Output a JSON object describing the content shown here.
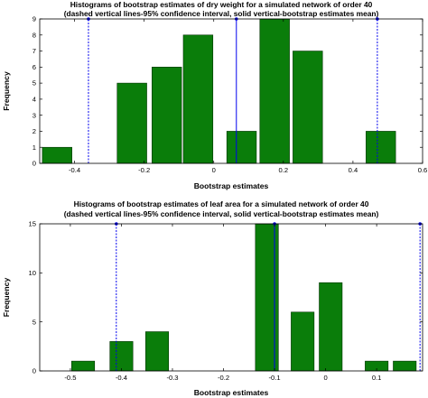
{
  "colors": {
    "bar_fill": "#0a7d0a",
    "bar_stroke": "#003300",
    "mean_line": "#0000ee",
    "ci_line": "#0000ee",
    "axis": "#000000"
  },
  "chart_data": [
    {
      "type": "bar",
      "title_line1": "Histograms of bootstrap estimates of dry weight for a simulated network of order 40",
      "title_line2": "(dashed vertical lines-95% confidence interval, solid vertical-bootstrap estimates mean)",
      "xlabel": "Bootstrap estimates",
      "ylabel": "Frequency",
      "xlim": [
        -0.5,
        0.6
      ],
      "ylim": [
        0,
        9
      ],
      "xticks": [
        -0.4,
        -0.2,
        0,
        0.2,
        0.4,
        0.6
      ],
      "xtick_labels": [
        "-0.4",
        "-0.2",
        "0",
        "0.2",
        "0.4",
        "0.6"
      ],
      "yticks": [
        0,
        1,
        2,
        3,
        4,
        5,
        6,
        7,
        8,
        9
      ],
      "ytick_labels": [
        "0",
        "1",
        "2",
        "3",
        "4",
        "5",
        "6",
        "7",
        "8",
        "9"
      ],
      "bar_width": 0.085,
      "bars": [
        {
          "x": -0.45,
          "value": 1
        },
        {
          "x": -0.235,
          "value": 5
        },
        {
          "x": -0.135,
          "value": 6
        },
        {
          "x": -0.045,
          "value": 8
        },
        {
          "x": 0.08,
          "value": 2
        },
        {
          "x": 0.175,
          "value": 9
        },
        {
          "x": 0.27,
          "value": 7
        },
        {
          "x": 0.48,
          "value": 2
        }
      ],
      "ci_lower": -0.36,
      "ci_upper": 0.47,
      "mean": 0.065,
      "grid": false
    },
    {
      "type": "bar",
      "title_line1": "Histograms of bootstrap estimates of leaf area for a simulated network of order 40",
      "title_line2": "(dashed vertical lines-95% confidence interval, solid vertical-bootstrap estimates mean)",
      "xlabel": "Bootstrap estimates",
      "ylabel": "Frequency",
      "xlim": [
        -0.56,
        0.19
      ],
      "ylim": [
        0,
        15
      ],
      "xticks": [
        -0.5,
        -0.4,
        -0.3,
        -0.2,
        -0.1,
        0,
        0.1
      ],
      "xtick_labels": [
        "-0.5",
        "-0.4",
        "-0.3",
        "-0.2",
        "-0.1",
        "0",
        "0.1"
      ],
      "yticks": [
        0,
        5,
        10,
        15
      ],
      "ytick_labels": [
        "0",
        "5",
        "10",
        "15"
      ],
      "bar_width": 0.045,
      "bars": [
        {
          "x": -0.475,
          "value": 1
        },
        {
          "x": -0.4,
          "value": 3
        },
        {
          "x": -0.33,
          "value": 4
        },
        {
          "x": -0.115,
          "value": 15
        },
        {
          "x": -0.045,
          "value": 6
        },
        {
          "x": 0.01,
          "value": 9
        },
        {
          "x": 0.1,
          "value": 1
        },
        {
          "x": 0.155,
          "value": 1
        }
      ],
      "ci_lower": -0.41,
      "ci_upper": 0.185,
      "mean": -0.1,
      "grid": false
    }
  ]
}
